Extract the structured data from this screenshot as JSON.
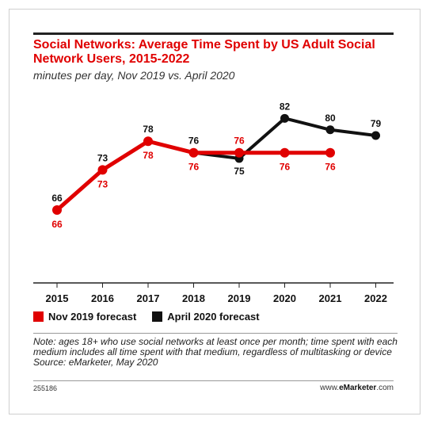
{
  "chart_data": {
    "type": "line",
    "title": "Social Networks: Average Time Spent by US Adult Social Network Users, 2015-2022",
    "subtitle": "minutes per day, Nov 2019 vs. April 2020",
    "x": [
      "2015",
      "2016",
      "2017",
      "2018",
      "2019",
      "2020",
      "2021",
      "2022"
    ],
    "ylim": [
      0,
      90
    ],
    "legend_position": "bottom-left",
    "grid": false,
    "series": [
      {
        "name": "Nov 2019 forecast",
        "color": "#e00000",
        "values": [
          66,
          73,
          78,
          76,
          76,
          76,
          76,
          null
        ],
        "labels": [
          "66",
          "73",
          "78",
          "76",
          "76",
          "76",
          "76",
          ""
        ]
      },
      {
        "name": "April 2020 forecast",
        "color": "#111111",
        "values": [
          null,
          null,
          78,
          76,
          75,
          82,
          80,
          79
        ],
        "labels": [
          "66",
          "73",
          "78",
          "76",
          "75",
          "82",
          "80",
          "79"
        ]
      }
    ]
  },
  "note": "Note: ages 18+ who use social networks at least once per month; time spent with each medium includes all time spent with that medium, regardless of multitasking or device",
  "source": "Source: eMarketer, May 2020",
  "footer": {
    "id": "255186",
    "brand_prefix": "www.",
    "brand_name": "eMarketer",
    "brand_suffix": ".com"
  }
}
